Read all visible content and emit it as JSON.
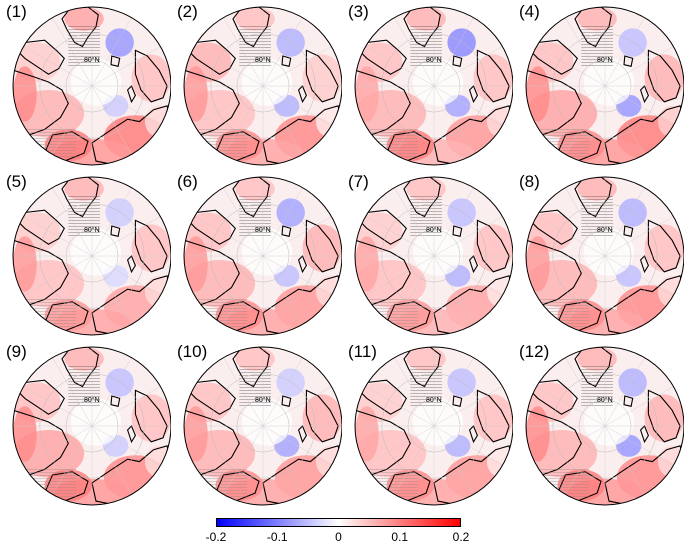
{
  "panels": [
    {
      "label": "(1)",
      "lat_label": "80°N",
      "anom": [
        0.06,
        0.1,
        -0.08,
        0.04,
        0.05,
        0.08,
        0.1,
        -0.04,
        0.07,
        0.03,
        0.09
      ]
    },
    {
      "label": "(2)",
      "lat_label": "80°N",
      "anom": [
        0.05,
        0.09,
        -0.06,
        0.06,
        0.04,
        0.07,
        0.09,
        -0.06,
        0.05,
        0.02,
        0.08
      ]
    },
    {
      "label": "(3)",
      "lat_label": "80°N",
      "anom": [
        0.06,
        0.08,
        -0.09,
        0.05,
        0.05,
        0.06,
        0.1,
        -0.07,
        0.06,
        0.03,
        0.07
      ]
    },
    {
      "label": "(4)",
      "lat_label": "80°N",
      "anom": [
        0.07,
        0.1,
        -0.05,
        0.05,
        0.06,
        0.08,
        0.09,
        -0.08,
        0.06,
        0.04,
        0.09
      ]
    },
    {
      "label": "(5)",
      "lat_label": "80°N",
      "anom": [
        0.05,
        0.07,
        -0.04,
        0.04,
        0.05,
        0.07,
        0.08,
        -0.03,
        0.06,
        0.03,
        0.08
      ]
    },
    {
      "label": "(6)",
      "lat_label": "80°N",
      "anom": [
        0.06,
        0.08,
        -0.07,
        0.05,
        0.06,
        0.07,
        0.09,
        -0.05,
        0.05,
        0.03,
        0.08
      ]
    },
    {
      "label": "(7)",
      "lat_label": "80°N",
      "anom": [
        0.05,
        0.07,
        -0.05,
        0.04,
        0.05,
        0.06,
        0.08,
        -0.06,
        0.05,
        0.02,
        0.07
      ]
    },
    {
      "label": "(8)",
      "lat_label": "80°N",
      "anom": [
        0.06,
        0.09,
        -0.06,
        0.05,
        0.05,
        0.07,
        0.09,
        -0.05,
        0.06,
        0.03,
        0.08
      ]
    },
    {
      "label": "(9)",
      "lat_label": "80°N",
      "anom": [
        0.07,
        0.09,
        -0.05,
        0.05,
        0.05,
        0.08,
        0.1,
        -0.04,
        0.06,
        0.03,
        0.09
      ]
    },
    {
      "label": "(10)",
      "lat_label": "80°N",
      "anom": [
        0.06,
        0.08,
        -0.04,
        0.05,
        0.06,
        0.07,
        0.09,
        -0.07,
        0.05,
        0.03,
        0.08
      ]
    },
    {
      "label": "(11)",
      "lat_label": "80°N",
      "anom": [
        0.05,
        0.08,
        -0.05,
        0.04,
        0.05,
        0.07,
        0.09,
        -0.06,
        0.05,
        0.02,
        0.07
      ]
    },
    {
      "label": "(12)",
      "lat_label": "80°N",
      "anom": [
        0.06,
        0.09,
        -0.06,
        0.05,
        0.06,
        0.08,
        0.1,
        -0.08,
        0.06,
        0.03,
        0.09
      ]
    }
  ],
  "colorbar": {
    "range": [
      -0.2,
      0.2
    ],
    "colors": [
      "#0000ff",
      "#ffffff",
      "#ff0000"
    ],
    "ticks": [
      {
        "value": -0.2,
        "label": "-0.2"
      },
      {
        "value": -0.1,
        "label": "-0.1"
      },
      {
        "value": 0,
        "label": "0"
      },
      {
        "value": 0.1,
        "label": "0.1"
      },
      {
        "value": 0.2,
        "label": "0.2"
      }
    ]
  }
}
